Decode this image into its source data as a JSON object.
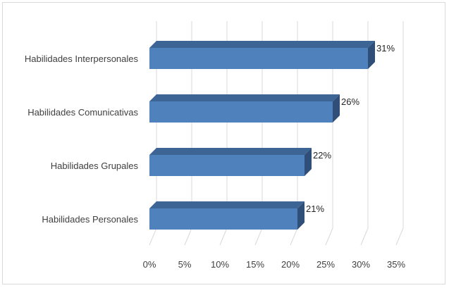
{
  "chart_data": {
    "type": "bar",
    "orientation": "horizontal",
    "style": "3d",
    "categories": [
      "Habilidades Interpersonales",
      "Habilidades Comunicativas",
      "Habilidades Grupales",
      "Habilidades Personales"
    ],
    "values": [
      31,
      26,
      22,
      21
    ],
    "data_labels": [
      "31%",
      "26%",
      "22%",
      "21%"
    ],
    "x_ticks": [
      "0%",
      "5%",
      "10%",
      "15%",
      "20%",
      "25%",
      "30%",
      "35%"
    ],
    "xlim": [
      0,
      35
    ],
    "grid": true,
    "legend": "none",
    "colors": {
      "bar_front": "#4f81bd",
      "bar_top": "#3c6596",
      "bar_side": "#2f4f78",
      "grid": "#d9d9d9",
      "text": "#404040"
    }
  }
}
